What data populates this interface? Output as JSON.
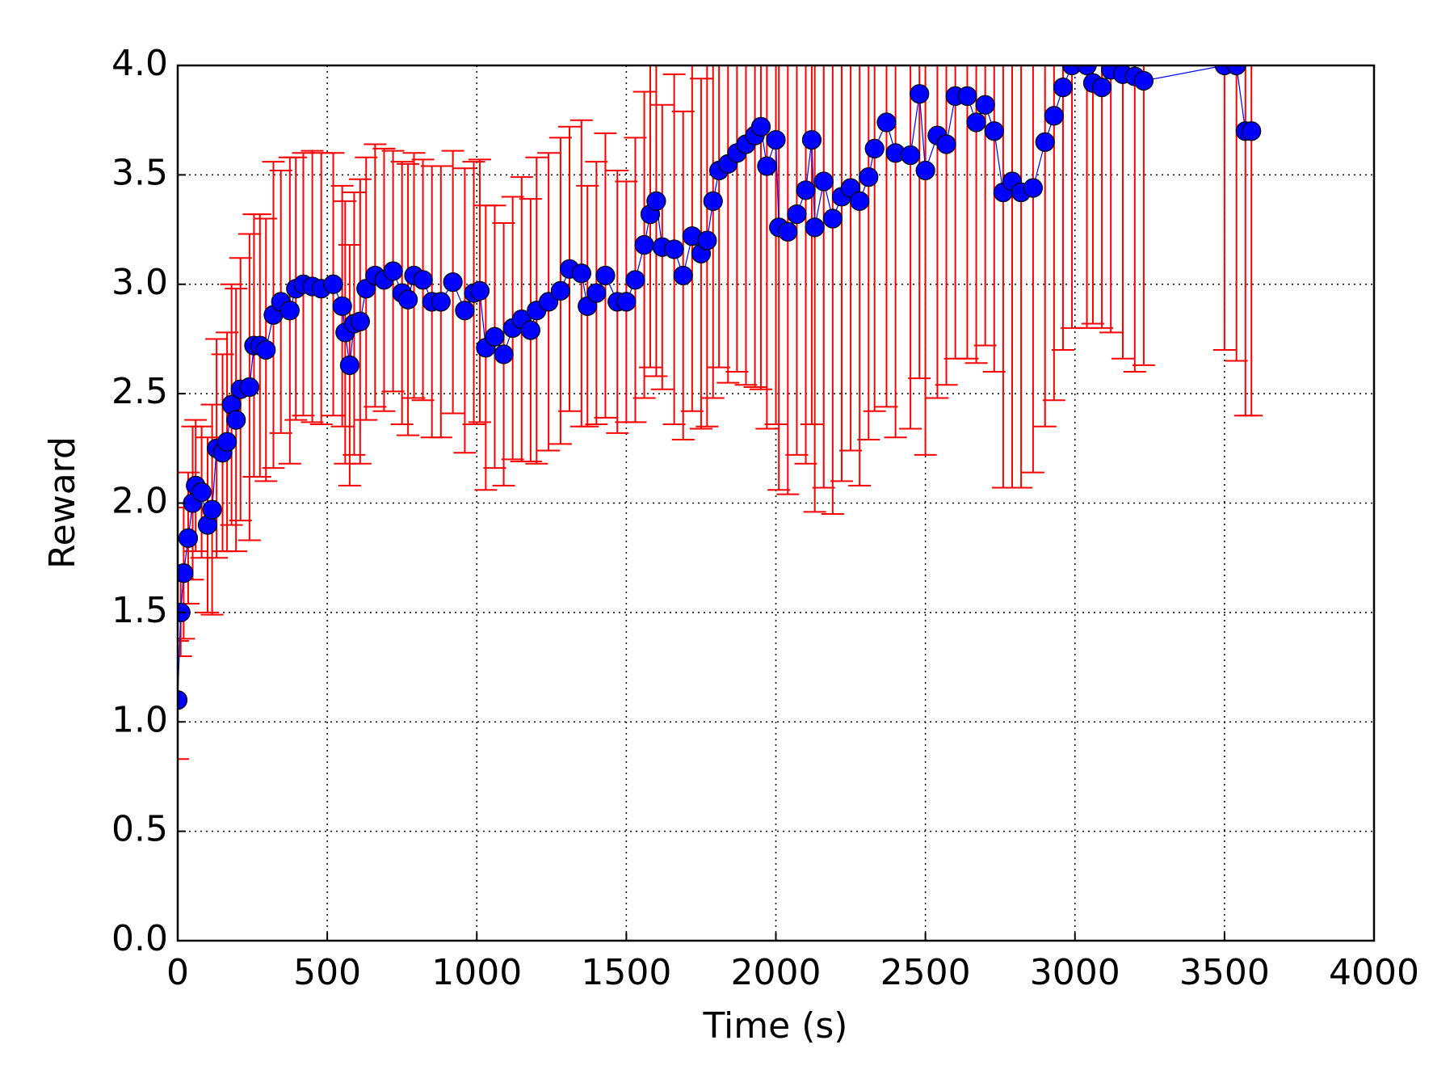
{
  "chart_data": {
    "type": "scatter",
    "x_label": "Time (s)",
    "y_label": "Reward",
    "xlim": [
      0,
      4000
    ],
    "xticks": [
      0,
      500,
      1000,
      1500,
      2000,
      2500,
      3000,
      3500,
      4000
    ],
    "ylim": [
      0,
      4
    ],
    "yticks": [
      {
        "value": 0,
        "label": "0.0"
      },
      {
        "value": 0.5,
        "label": "0.5"
      },
      {
        "value": 1,
        "label": "1.0"
      },
      {
        "value": 1.5,
        "label": "1.5"
      },
      {
        "value": 2,
        "label": "2.0"
      },
      {
        "value": 2.5,
        "label": "2.5"
      },
      {
        "value": 3,
        "label": "3.0"
      },
      {
        "value": 3.5,
        "label": "3.5"
      },
      {
        "value": 4,
        "label": "4.0"
      }
    ],
    "grid": true,
    "x": [
      0,
      10,
      20,
      35,
      50,
      60,
      80,
      100,
      115,
      130,
      150,
      165,
      180,
      195,
      210,
      240,
      255,
      275,
      295,
      320,
      345,
      375,
      395,
      420,
      450,
      480,
      520,
      550,
      560,
      575,
      590,
      610,
      630,
      660,
      690,
      720,
      750,
      770,
      790,
      820,
      850,
      880,
      920,
      960,
      990,
      1010,
      1030,
      1060,
      1090,
      1120,
      1150,
      1180,
      1200,
      1240,
      1280,
      1310,
      1350,
      1370,
      1400,
      1430,
      1470,
      1500,
      1530,
      1560,
      1580,
      1600,
      1620,
      1660,
      1690,
      1720,
      1750,
      1770,
      1790,
      1810,
      1840,
      1870,
      1900,
      1930,
      1950,
      1970,
      2000,
      2010,
      2040,
      2070,
      2100,
      2120,
      2130,
      2160,
      2190,
      2220,
      2250,
      2280,
      2310,
      2330,
      2370,
      2400,
      2450,
      2480,
      2500,
      2540,
      2570,
      2600,
      2640,
      2670,
      2700,
      2730,
      2760,
      2790,
      2820,
      2860,
      2900,
      2930,
      2960,
      2990,
      3040,
      3060,
      3090,
      3120,
      3160,
      3200,
      3230,
      3500,
      3540,
      3570,
      3590
    ],
    "series": [
      {
        "color": "#0000ff",
        "error_color": "#ff0000",
        "values": [
          1.1,
          1.5,
          1.68,
          1.84,
          2.0,
          2.08,
          2.05,
          1.9,
          1.97,
          2.25,
          2.23,
          2.28,
          2.45,
          2.38,
          2.52,
          2.53,
          2.72,
          2.72,
          2.7,
          2.86,
          2.92,
          2.88,
          2.98,
          3.0,
          2.99,
          2.98,
          3.0,
          2.9,
          2.78,
          2.63,
          2.82,
          2.83,
          2.98,
          3.04,
          3.02,
          3.06,
          2.96,
          2.93,
          3.04,
          3.02,
          2.92,
          2.92,
          3.01,
          2.88,
          2.96,
          2.97,
          2.71,
          2.76,
          2.68,
          2.8,
          2.84,
          2.79,
          2.88,
          2.92,
          2.97,
          3.07,
          3.05,
          2.9,
          2.96,
          3.04,
          2.92,
          2.92,
          3.02,
          3.18,
          3.32,
          3.38,
          3.17,
          3.16,
          3.04,
          3.22,
          3.14,
          3.2,
          3.38,
          3.52,
          3.55,
          3.6,
          3.64,
          3.68,
          3.72,
          3.54,
          3.66,
          3.26,
          3.24,
          3.32,
          3.43,
          3.66,
          3.26,
          3.47,
          3.3,
          3.4,
          3.44,
          3.38,
          3.49,
          3.62,
          3.74,
          3.6,
          3.59,
          3.87,
          3.52,
          3.68,
          3.64,
          3.86,
          3.86,
          3.74,
          3.82,
          3.7,
          3.42,
          3.47,
          3.42,
          3.44,
          3.65,
          3.77,
          3.9,
          4.0,
          4.0,
          3.92,
          3.9,
          3.98,
          3.96,
          3.95,
          3.93,
          4.0,
          4.0,
          3.7,
          3.7
        ],
        "errors": [
          0.27,
          0.2,
          0.3,
          0.3,
          0.35,
          0.3,
          0.3,
          0.4,
          0.48,
          0.5,
          0.45,
          0.5,
          0.55,
          0.6,
          0.6,
          0.7,
          0.6,
          0.6,
          0.6,
          0.7,
          0.6,
          0.7,
          0.6,
          0.6,
          0.62,
          0.62,
          0.6,
          0.55,
          0.6,
          0.55,
          0.6,
          0.65,
          0.6,
          0.6,
          0.6,
          0.55,
          0.6,
          0.62,
          0.56,
          0.55,
          0.62,
          0.62,
          0.6,
          0.65,
          0.6,
          0.6,
          0.65,
          0.6,
          0.6,
          0.6,
          0.65,
          0.6,
          0.7,
          0.68,
          0.7,
          0.65,
          0.7,
          0.55,
          0.6,
          0.65,
          0.6,
          0.55,
          0.65,
          0.7,
          0.7,
          0.8,
          0.65,
          0.8,
          0.75,
          0.8,
          0.8,
          0.85,
          0.9,
          0.9,
          1.0,
          1.0,
          1.1,
          1.15,
          1.2,
          1.2,
          1.3,
          1.2,
          1.2,
          1.1,
          1.25,
          1.3,
          1.3,
          1.4,
          1.35,
          1.3,
          1.2,
          1.3,
          1.2,
          1.2,
          1.3,
          1.3,
          1.25,
          1.3,
          1.3,
          1.2,
          1.1,
          1.2,
          1.2,
          1.1,
          1.1,
          1.1,
          1.35,
          1.4,
          1.35,
          1.3,
          1.3,
          1.3,
          1.2,
          1.2,
          1.2,
          1.1,
          1.1,
          1.2,
          1.3,
          1.35,
          1.3,
          1.3,
          1.35,
          1.3,
          1.3
        ]
      }
    ]
  }
}
